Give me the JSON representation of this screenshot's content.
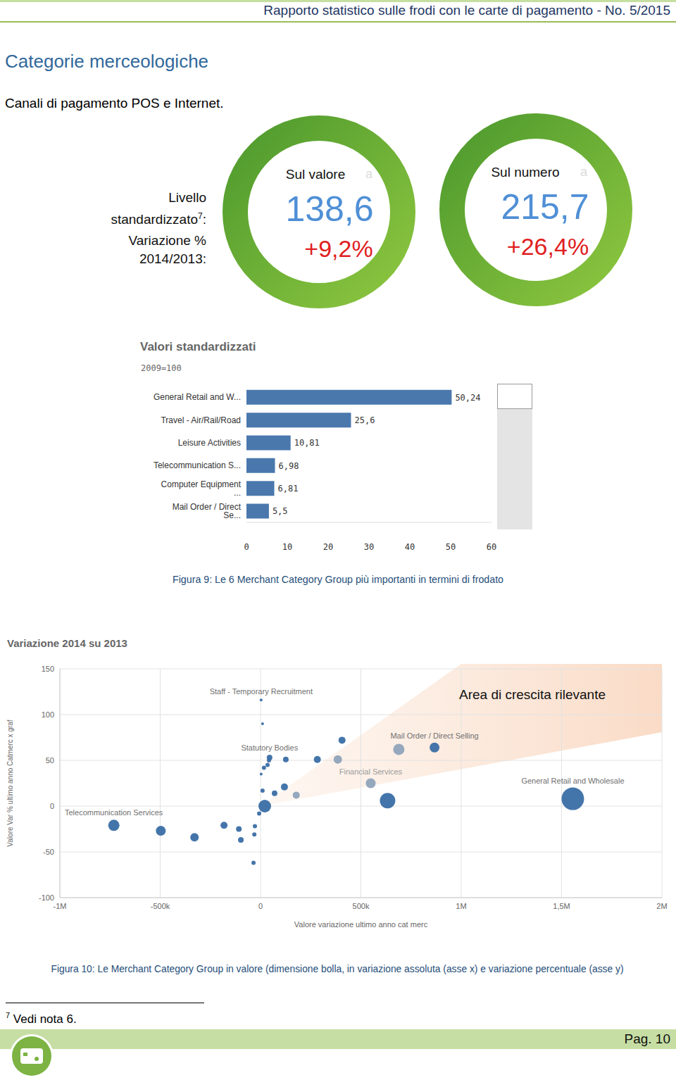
{
  "header": "Rapporto statistico sulle frodi con le carte di pagamento - No. 5/2015",
  "heading": "Categorie merceologiche",
  "subheading": "Canali di pagamento POS e Internet.",
  "kpi_labels": {
    "level": {
      "text": "Livello standardizzato",
      "note": "7",
      "end": ":"
    },
    "change": "Variazione % 2014/2013:"
  },
  "kpis": [
    {
      "title": "Sul valore",
      "mark": "a",
      "level": 138.6,
      "level_label": "138,6",
      "change": 9.2,
      "change_label": "+9,2%"
    },
    {
      "title": "Sul numero",
      "mark": "a",
      "level": 215.7,
      "level_label": "215,7",
      "change": 26.4,
      "change_label": "+26,4%"
    }
  ],
  "chart_data": [
    {
      "type": "bar",
      "orientation": "horizontal",
      "title": "Valori standardizzati",
      "subtitle": "2009=100",
      "categories": [
        "General Retail and W...",
        "Travel - Air/Rail/Road",
        "Leisure Activities",
        "Telecommunication S...",
        "Computer Equipment ...",
        "Mail Order / Direct Se..."
      ],
      "values": [
        50.24,
        25.6,
        10.81,
        6.98,
        6.81,
        5.5
      ],
      "value_labels": [
        "50,24",
        "25,6",
        "10,81",
        "6,98",
        "6,81",
        "5,5"
      ],
      "data_labels": true,
      "color": "#4a78ad",
      "xlim": [
        0,
        60
      ],
      "xticks": [
        0,
        10,
        20,
        30,
        40,
        50,
        60
      ],
      "grid": false,
      "caption": "Figura 9: Le 6 Merchant Category Group più importanti in termini di frodato"
    },
    {
      "type": "scatter",
      "title": "Variazione 2014 su 2013",
      "x_label": "Valore variazione ultimo anno cat merc",
      "y_label": "Valore Var % ultimo anno Catmerc x graf",
      "annotation": "Area di crescita rilevante",
      "marker": "circle",
      "x": [
        -731000,
        -497000,
        -329000,
        -182000,
        -108000,
        -98000,
        -28000,
        -31000,
        -35000,
        -7000,
        21000,
        10000,
        3000,
        17000,
        35000,
        45000,
        42000,
        10000,
        3000,
        70000,
        119000,
        126000,
        178000,
        283000,
        385000,
        406000,
        549000,
        633000,
        689000,
        867000,
        1556000
      ],
      "y": [
        -21,
        -27,
        -34,
        -21,
        -25,
        -37,
        -22,
        -31,
        -62,
        -8,
        0,
        17,
        35,
        42,
        45,
        53,
        50,
        90,
        116,
        14,
        21,
        51,
        12,
        51,
        51,
        72,
        25,
        6,
        62,
        64,
        8
      ],
      "sizes": [
        64,
        49,
        36,
        25,
        16,
        16,
        9,
        9,
        9,
        9,
        81,
        9,
        4,
        9,
        9,
        16,
        9,
        4,
        4,
        16,
        25,
        16,
        25,
        25,
        36,
        25,
        49,
        121,
        64,
        49,
        256
      ],
      "labels": [
        "Telecommunication Services",
        null,
        null,
        null,
        null,
        null,
        null,
        null,
        null,
        null,
        null,
        null,
        null,
        null,
        null,
        "Statutory Bodies",
        null,
        null,
        "Staff - Temporary Recruitment",
        null,
        null,
        null,
        null,
        null,
        null,
        null,
        "Financial Services",
        null,
        null,
        "Mail Order / Direct Selling",
        "General Retail and Wholesale"
      ],
      "colors": [
        "#3a6ea5",
        "#3a6ea5",
        "#3a6ea5",
        "#3a6ea5",
        "#3a6ea5",
        "#3a6ea5",
        "#3a6ea5",
        "#3a6ea5",
        "#3a6ea5",
        "#3a6ea5",
        "#3a6ea5",
        "#3a6ea5",
        "#3a6ea5",
        "#3a6ea5",
        "#3a6ea5",
        "#3a6ea5",
        "#3a6ea5",
        "#3a6ea5",
        "#3a6ea5",
        "#3a6ea5",
        "#3a6ea5",
        "#3a6ea5",
        "#8fa3bb",
        "#3a6ea5",
        "#8fa3bb",
        "#3a6ea5",
        "#8fa3bb",
        "#3a6ea5",
        "#8fa3bb",
        "#3a6ea5",
        "#3a6ea5"
      ],
      "xlim": [
        -1000000,
        2000000
      ],
      "xticks": [
        {
          "value": -1000000,
          "label": "-1M"
        },
        {
          "value": -500000,
          "label": "-500k"
        },
        0,
        {
          "value": 500000,
          "label": "500k"
        },
        {
          "value": 1000000,
          "label": "1M"
        },
        {
          "value": 1500000,
          "label": "1,5M"
        },
        {
          "value": 2000000,
          "label": "2M"
        }
      ],
      "ylim": [
        -100,
        150
      ],
      "yticks": [
        -100,
        -50,
        0,
        50,
        100,
        150
      ],
      "grid": true,
      "caption": "Figura 10: Le Merchant Category Group in valore (dimensione bolla, in variazione assoluta (asse x) e variazione percentuale (asse y)"
    }
  ],
  "footnote": {
    "mark": "7",
    "text": "Vedi nota 6."
  },
  "page": "Pag. 10"
}
